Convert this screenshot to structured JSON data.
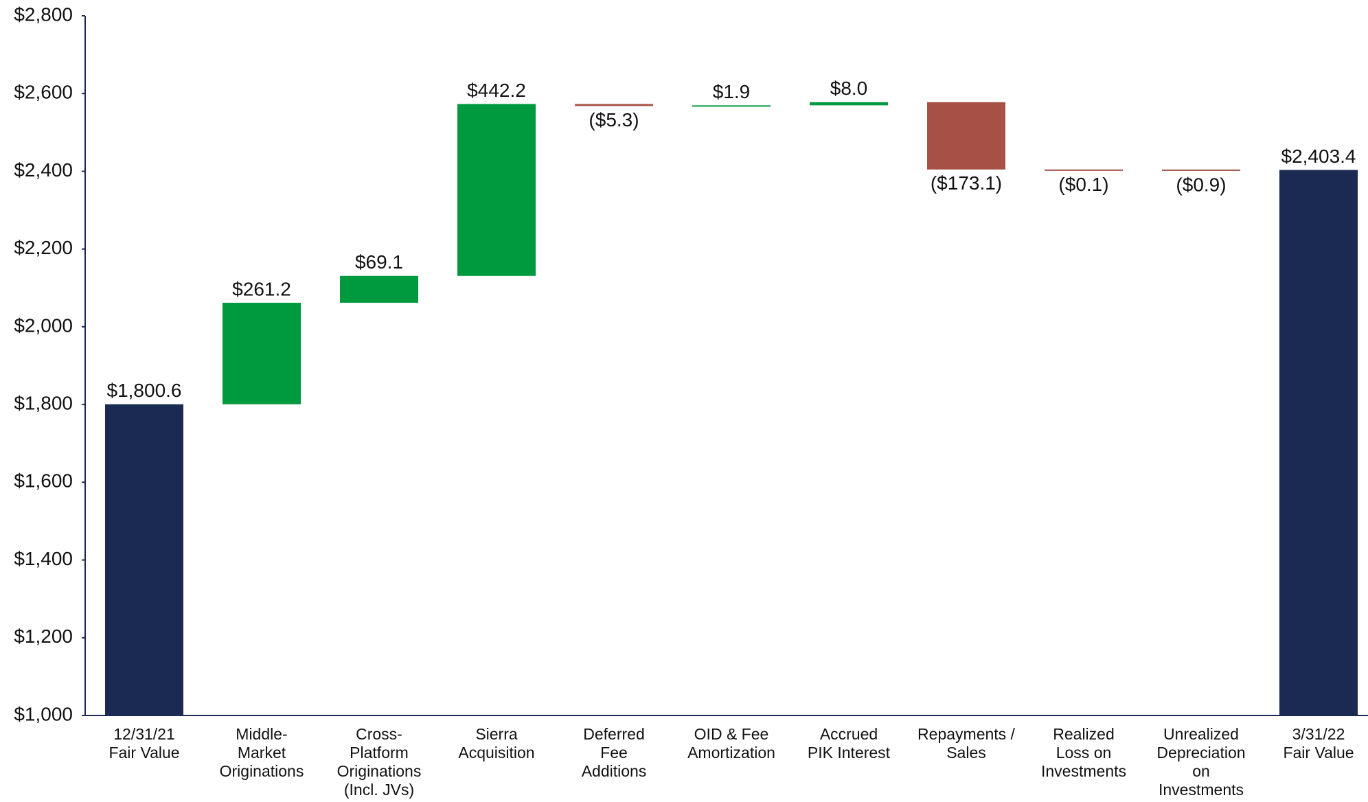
{
  "chart_data": {
    "type": "waterfall",
    "categories": [
      "12/31/21\nFair Value",
      "Middle-\nMarket\nOriginations",
      "Cross-\nPlatform\nOriginations\n(Incl. JVs)",
      "Sierra\nAcquisition",
      "Deferred\nFee\nAdditions",
      "OID & Fee\nAmortization",
      "Accrued\nPIK Interest",
      "Repayments /\nSales",
      "Realized\nLoss on\nInvestments",
      "Unrealized\nDepreciation\non\nInvestments",
      "3/31/22\nFair Value"
    ],
    "measures": [
      "total",
      "relative",
      "relative",
      "relative",
      "relative",
      "relative",
      "relative",
      "relative",
      "relative",
      "relative",
      "total"
    ],
    "values": [
      1800.6,
      261.2,
      69.1,
      442.2,
      -5.3,
      1.9,
      8.0,
      -173.1,
      -0.1,
      -0.9,
      2403.4
    ],
    "value_labels": [
      "$1,800.6",
      "$261.2",
      "$69.1",
      "$442.2",
      "($5.3)",
      "$1.9",
      "$8.0",
      "($173.1)",
      "($0.1)",
      "($0.9)",
      "$2,403.4"
    ],
    "total_color": "#1b2a52",
    "increase_color": "#009a3e",
    "decrease_color": "#a65046",
    "ylim": [
      1000,
      2800
    ],
    "yticks": [
      {
        "value": 1000,
        "label": "$1,000"
      },
      {
        "value": 1200,
        "label": "$1,200"
      },
      {
        "value": 1400,
        "label": "$1,400"
      },
      {
        "value": 1600,
        "label": "$1,600"
      },
      {
        "value": 1800,
        "label": "$1,800"
      },
      {
        "value": 2000,
        "label": "$2,000"
      },
      {
        "value": 2200,
        "label": "$2,200"
      },
      {
        "value": 2400,
        "label": "$2,400"
      },
      {
        "value": 2600,
        "label": "$2,600"
      },
      {
        "value": 2800,
        "label": "$2,800"
      }
    ],
    "grid": false
  }
}
